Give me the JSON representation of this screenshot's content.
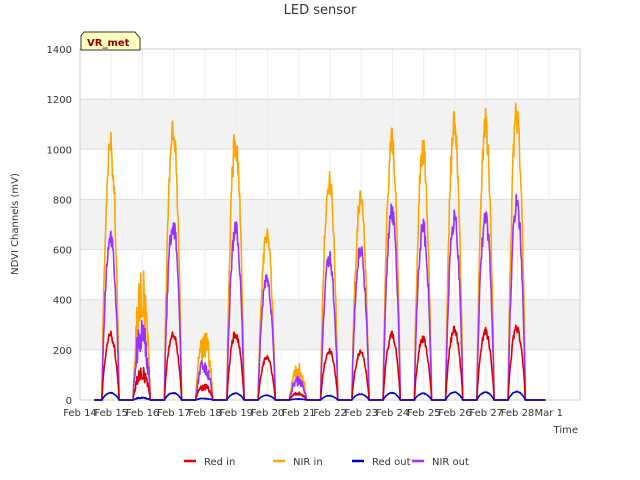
{
  "chart_data": {
    "type": "line",
    "title": "LED sensor",
    "xlabel": "Time",
    "ylabel": "NDVI Channels (mV)",
    "ylim": [
      0,
      1400
    ],
    "yticks": [
      0,
      200,
      400,
      600,
      800,
      1000,
      1200,
      1400
    ],
    "xticks": [
      "Feb 14",
      "Feb 15",
      "Feb 16",
      "Feb 17",
      "Feb 18",
      "Feb 19",
      "Feb 20",
      "Feb 21",
      "Feb 22",
      "Feb 23",
      "Feb 24",
      "Feb 25",
      "Feb 26",
      "Feb 27",
      "Feb 28",
      "Mar 1"
    ],
    "x_range_days": [
      14,
      30
    ],
    "grid": true,
    "legend_position": "bottom",
    "badge": "VR_met",
    "series": [
      {
        "name": "NIR in",
        "color": "#ffa500",
        "daily_peaks": [
          1070,
          555,
          1150,
          300,
          1095,
          695,
          160,
          935,
          840,
          1090,
          1060,
          1155,
          1165,
          1210
        ]
      },
      {
        "name": "NIR out",
        "color": "#9b30ff",
        "daily_peaks": [
          680,
          355,
          750,
          180,
          720,
          515,
          100,
          600,
          635,
          790,
          730,
          770,
          780,
          830
        ]
      },
      {
        "name": "Red in",
        "color": "#dd0000",
        "daily_peaks": [
          275,
          140,
          280,
          70,
          280,
          180,
          35,
          210,
          200,
          275,
          260,
          295,
          290,
          305
        ]
      },
      {
        "name": "Red out",
        "color": "#0000cc",
        "daily_peaks": [
          30,
          12,
          30,
          8,
          28,
          20,
          5,
          18,
          25,
          30,
          28,
          33,
          33,
          35
        ]
      }
    ],
    "legend": [
      {
        "label": "Red in",
        "color": "#dd0000"
      },
      {
        "label": "NIR in",
        "color": "#ffa500"
      },
      {
        "label": "Red out",
        "color": "#0000cc"
      },
      {
        "label": "NIR out",
        "color": "#9b30ff"
      }
    ]
  }
}
